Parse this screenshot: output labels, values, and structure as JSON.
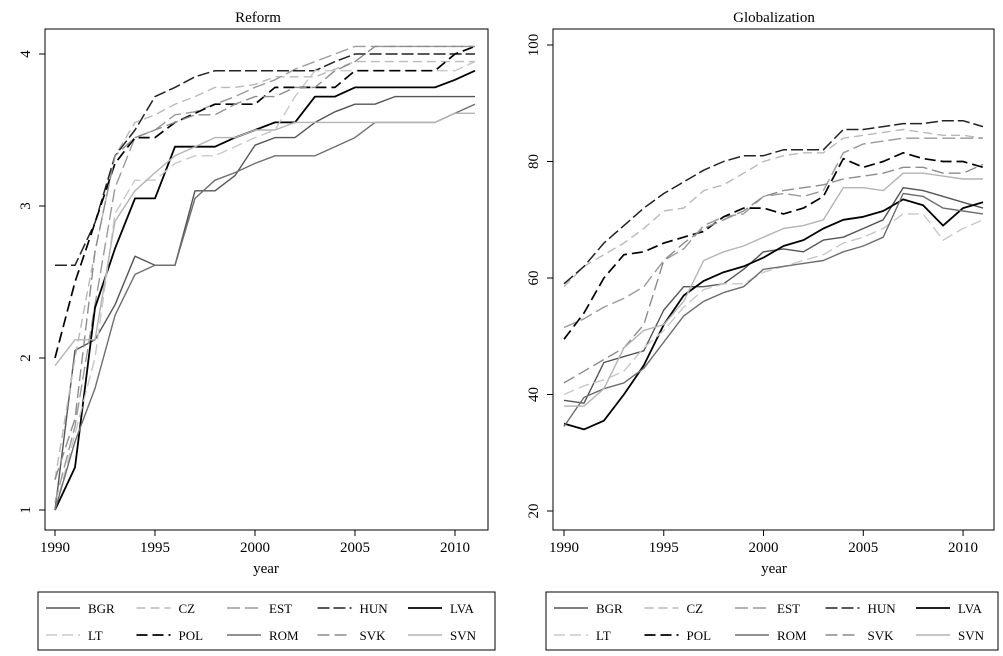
{
  "colors": {
    "BGR": "#555555",
    "CZ": "#b9b9b9",
    "EST": "#9a9a9a",
    "HUN": "#222222",
    "LVA": "#000000",
    "LT": "#c8c8c8",
    "POL": "#000000",
    "ROM": "#6e6e6e",
    "SVK": "#8c8c8c",
    "SVN": "#b4b4b4"
  },
  "chart_data": [
    {
      "type": "line",
      "title": "Reform",
      "xlabel": "year",
      "ylabel": "",
      "xlim": [
        1990,
        2011
      ],
      "ylim": [
        1,
        4
      ],
      "x_ticks": [
        1990,
        1995,
        2000,
        2005,
        2010
      ],
      "y_ticks": [
        1,
        2,
        3,
        4
      ],
      "grid": false,
      "legend": "below",
      "x": [
        1990,
        1991,
        1992,
        1993,
        1994,
        1995,
        1996,
        1997,
        1998,
        1999,
        2000,
        2001,
        2002,
        2003,
        2004,
        2005,
        2006,
        2007,
        2008,
        2009,
        2010,
        2011
      ],
      "series": [
        {
          "name": "BGR",
          "values": [
            1.0,
            2.05,
            2.12,
            2.35,
            2.67,
            2.61,
            2.61,
            3.1,
            3.1,
            3.2,
            3.4,
            3.45,
            3.45,
            3.55,
            3.62,
            3.67,
            3.67,
            3.72,
            3.72,
            3.72,
            3.72,
            3.72
          ]
        },
        {
          "name": "CZ",
          "values": [
            1.2,
            2.0,
            2.7,
            3.33,
            3.55,
            3.6,
            3.67,
            3.72,
            3.78,
            3.78,
            3.8,
            3.85,
            3.85,
            3.85,
            3.9,
            3.95,
            3.95,
            3.95,
            3.95,
            3.95,
            3.95,
            3.95
          ]
        },
        {
          "name": "EST",
          "values": [
            1.05,
            1.55,
            2.35,
            3.12,
            3.45,
            3.5,
            3.6,
            3.62,
            3.67,
            3.72,
            3.78,
            3.83,
            3.9,
            3.95,
            4.0,
            4.05,
            4.05,
            4.05,
            4.05,
            4.05,
            4.05,
            4.05
          ]
        },
        {
          "name": "HUN",
          "values": [
            2.61,
            2.61,
            2.89,
            3.33,
            3.5,
            3.72,
            3.78,
            3.85,
            3.89,
            3.89,
            3.89,
            3.89,
            3.89,
            3.89,
            3.95,
            4.0,
            4.0,
            4.0,
            4.0,
            4.0,
            4.0,
            4.0
          ]
        },
        {
          "name": "LVA",
          "values": [
            1.0,
            1.28,
            2.33,
            2.72,
            3.05,
            3.05,
            3.39,
            3.39,
            3.39,
            3.45,
            3.5,
            3.55,
            3.55,
            3.72,
            3.72,
            3.78,
            3.78,
            3.78,
            3.78,
            3.78,
            3.83,
            3.89
          ]
        },
        {
          "name": "LT",
          "values": [
            1.0,
            1.5,
            2.0,
            2.95,
            3.17,
            3.17,
            3.28,
            3.33,
            3.33,
            3.39,
            3.45,
            3.5,
            3.72,
            3.89,
            3.89,
            3.89,
            3.89,
            3.89,
            3.89,
            3.89,
            3.89,
            3.95
          ]
        },
        {
          "name": "POL",
          "values": [
            2.0,
            2.5,
            2.89,
            3.28,
            3.45,
            3.45,
            3.55,
            3.61,
            3.67,
            3.67,
            3.67,
            3.78,
            3.78,
            3.78,
            3.78,
            3.89,
            3.89,
            3.89,
            3.89,
            3.89,
            4.0,
            4.05
          ]
        },
        {
          "name": "ROM",
          "values": [
            1.0,
            1.45,
            1.8,
            2.28,
            2.55,
            2.61,
            2.61,
            3.05,
            3.17,
            3.22,
            3.28,
            3.33,
            3.33,
            3.33,
            3.39,
            3.45,
            3.55,
            3.55,
            3.55,
            3.55,
            3.61,
            3.67
          ]
        },
        {
          "name": "SVK",
          "values": [
            1.2,
            1.6,
            2.7,
            3.33,
            3.45,
            3.5,
            3.55,
            3.6,
            3.6,
            3.67,
            3.72,
            3.72,
            3.78,
            3.78,
            3.89,
            3.95,
            4.05,
            4.05,
            4.05,
            4.05,
            4.05,
            4.05
          ]
        },
        {
          "name": "SVN",
          "values": [
            1.95,
            2.12,
            2.12,
            2.9,
            3.1,
            3.22,
            3.33,
            3.39,
            3.45,
            3.45,
            3.5,
            3.5,
            3.55,
            3.55,
            3.55,
            3.55,
            3.55,
            3.55,
            3.55,
            3.55,
            3.61,
            3.61
          ]
        }
      ]
    },
    {
      "type": "line",
      "title": "Globalization",
      "xlabel": "year",
      "ylabel": "",
      "xlim": [
        1990,
        2011
      ],
      "ylim": [
        20,
        100
      ],
      "x_ticks": [
        1990,
        1995,
        2000,
        2005,
        2010
      ],
      "y_ticks": [
        20,
        40,
        60,
        80,
        100
      ],
      "grid": false,
      "legend": "below",
      "x": [
        1990,
        1991,
        1992,
        1993,
        1994,
        1995,
        1996,
        1997,
        1998,
        1999,
        2000,
        2001,
        2002,
        2003,
        2004,
        2005,
        2006,
        2007,
        2008,
        2009,
        2010,
        2011
      ],
      "series": [
        {
          "name": "BGR",
          "values": [
            39,
            38.5,
            45.5,
            46.5,
            47.5,
            54.5,
            58.5,
            58.5,
            59,
            61.5,
            64.5,
            65,
            64.5,
            66.5,
            67,
            68.5,
            70,
            75.5,
            75,
            74,
            73,
            72
          ]
        },
        {
          "name": "CZ",
          "values": [
            58.5,
            62,
            64,
            66,
            68.5,
            71.5,
            72,
            75,
            76,
            78,
            80,
            81,
            81.5,
            81.5,
            84,
            84.5,
            85,
            85.5,
            85,
            84.5,
            84.5,
            84
          ]
        },
        {
          "name": "EST",
          "values": [
            51.5,
            53,
            55,
            56.5,
            58.5,
            63,
            65,
            69,
            70.5,
            71,
            74,
            74.5,
            74,
            75,
            81.5,
            83,
            83.5,
            84,
            84,
            84,
            84,
            84
          ]
        },
        {
          "name": "HUN",
          "values": [
            59,
            62,
            66,
            69,
            72,
            74.5,
            76.5,
            78.5,
            80,
            81,
            81,
            82,
            82,
            82,
            85.5,
            85.5,
            86,
            86.5,
            86.5,
            87,
            87,
            86
          ]
        },
        {
          "name": "LVA",
          "values": [
            35,
            34,
            35.5,
            40,
            45,
            52,
            57,
            59.5,
            61,
            62,
            63.5,
            65.5,
            66.5,
            68.5,
            70,
            70.5,
            71.5,
            73.5,
            72.5,
            69,
            72,
            73
          ]
        },
        {
          "name": "LT",
          "values": [
            40,
            41.5,
            42.5,
            44,
            48,
            51,
            55,
            58,
            59,
            59,
            61,
            62,
            63,
            64,
            66,
            67,
            68.5,
            71,
            71,
            66.5,
            68.5,
            70
          ]
        },
        {
          "name": "POL",
          "values": [
            49.5,
            54,
            60,
            64,
            64.5,
            66,
            67,
            68,
            70.5,
            72,
            72,
            71,
            72,
            74,
            80.5,
            79,
            80,
            81.5,
            80.5,
            80,
            80,
            79
          ]
        },
        {
          "name": "ROM",
          "values": [
            34.5,
            39.5,
            41,
            42,
            44.5,
            49,
            53.5,
            56,
            57.5,
            58.5,
            61.5,
            62,
            62.5,
            63,
            64.5,
            65.5,
            67,
            74.5,
            74,
            72,
            71.5,
            71
          ]
        },
        {
          "name": "SVK",
          "values": [
            42,
            44,
            46,
            48,
            52,
            63,
            66,
            68.5,
            70,
            71.5,
            74,
            75,
            75.5,
            76,
            77,
            77.5,
            78,
            79,
            79,
            78,
            78,
            79.5
          ]
        },
        {
          "name": "SVN",
          "values": [
            38,
            38,
            41,
            48,
            51,
            52,
            56,
            63,
            64.5,
            65.5,
            67,
            68.5,
            69,
            70,
            75.5,
            75.5,
            75,
            78,
            78,
            77.5,
            77,
            77
          ]
        }
      ]
    }
  ],
  "legends": [
    {
      "row1": [
        "BGR",
        "CZ",
        "EST",
        "HUN",
        "LVA"
      ],
      "row2": [
        "LT",
        "POL",
        "ROM",
        "SVK",
        "SVN"
      ]
    },
    {
      "row1": [
        "BGR",
        "CZ",
        "EST",
        "HUN",
        "LVA"
      ],
      "row2": [
        "LT",
        "POL",
        "ROM",
        "SVK",
        "SVN"
      ]
    }
  ]
}
